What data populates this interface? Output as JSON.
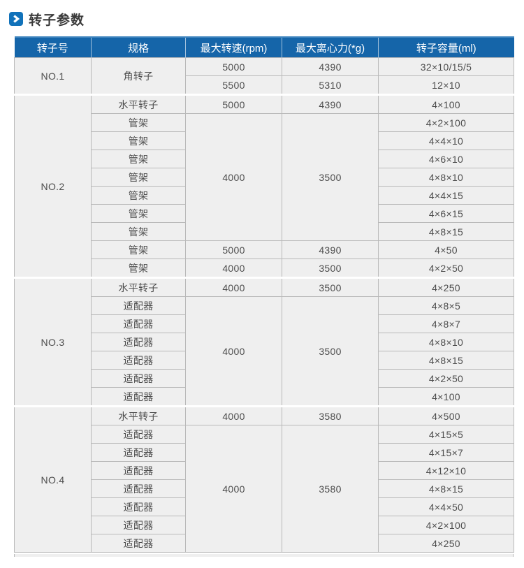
{
  "page": {
    "title": "转子参数",
    "accent_color": "#1565a9",
    "icon_color": "#1172ba",
    "cell_background": "#efefef",
    "border_color": "#b9b9b9"
  },
  "table": {
    "headers": [
      "转子号",
      "规格",
      "最大转速(rpm)",
      "最大离心力(*g)",
      "转子容量(ml)"
    ],
    "sections": [
      {
        "rotor_no": "NO.1",
        "rows": [
          {
            "spec": {
              "text": "角转子",
              "rowspan": 2
            },
            "speed": "5000",
            "force": "4390",
            "capacity": "32×10/15/5"
          },
          {
            "speed": "5500",
            "force": "5310",
            "capacity": "12×10"
          }
        ]
      },
      {
        "rotor_no": "NO.2",
        "rows": [
          {
            "spec": "水平转子",
            "speed": "5000",
            "force": "4390",
            "capacity": "4×100"
          },
          {
            "spec": "管架",
            "speed": {
              "text": "4000",
              "rowspan": 7
            },
            "force": {
              "text": "3500",
              "rowspan": 7
            },
            "capacity": "4×2×100"
          },
          {
            "spec": "管架",
            "capacity": "4×4×10"
          },
          {
            "spec": "管架",
            "capacity": "4×6×10"
          },
          {
            "spec": "管架",
            "capacity": "4×8×10"
          },
          {
            "spec": "管架",
            "capacity": "4×4×15"
          },
          {
            "spec": "管架",
            "capacity": "4×6×15"
          },
          {
            "spec": "管架",
            "capacity": "4×8×15"
          },
          {
            "spec": "管架",
            "speed": "5000",
            "force": "4390",
            "capacity": "4×50"
          },
          {
            "spec": "管架",
            "speed": "4000",
            "force": "3500",
            "capacity": "4×2×50"
          }
        ]
      },
      {
        "rotor_no": "NO.3",
        "rows": [
          {
            "spec": "水平转子",
            "speed": "4000",
            "force": "3500",
            "capacity": "4×250"
          },
          {
            "spec": "适配器",
            "speed": {
              "text": "4000",
              "rowspan": 6
            },
            "force": {
              "text": "3500",
              "rowspan": 6
            },
            "capacity": "4×8×5"
          },
          {
            "spec": "适配器",
            "capacity": "4×8×7"
          },
          {
            "spec": "适配器",
            "capacity": "4×8×10"
          },
          {
            "spec": "适配器",
            "capacity": "4×8×15"
          },
          {
            "spec": "适配器",
            "capacity": "4×2×50"
          },
          {
            "spec": "适配器",
            "capacity": "4×100"
          }
        ]
      },
      {
        "rotor_no": "NO.4",
        "rows": [
          {
            "spec": "水平转子",
            "speed": "4000",
            "force": "3580",
            "capacity": "4×500"
          },
          {
            "spec": "适配器",
            "speed": {
              "text": "4000",
              "rowspan": 7
            },
            "force": {
              "text": "3580",
              "rowspan": 7
            },
            "capacity": "4×15×5"
          },
          {
            "spec": "适配器",
            "capacity": "4×15×7"
          },
          {
            "spec": "适配器",
            "capacity": "4×12×10"
          },
          {
            "spec": "适配器",
            "capacity": "4×8×15"
          },
          {
            "spec": "适配器",
            "capacity": "4×4×50"
          },
          {
            "spec": "适配器",
            "capacity": "4×2×100"
          },
          {
            "spec": "适配器",
            "capacity": "4×250"
          }
        ]
      }
    ]
  }
}
